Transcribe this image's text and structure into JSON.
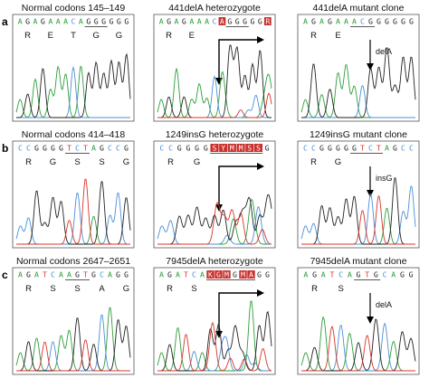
{
  "rows": [
    {
      "label": "a",
      "panels": [
        {
          "title": "Normal codons 145–149",
          "seq": "AGAGAAACAGGGGGG",
          "aa": [
            "R",
            "E",
            "T",
            "G",
            "G"
          ],
          "highlight": [],
          "underline": [
            9,
            12
          ],
          "arrow": "none",
          "annotation": ""
        },
        {
          "title": "441delA heterozygote",
          "seq": "AGAGAAACAGGGGGR",
          "aa": [
            "R",
            "E"
          ],
          "highlight": [
            8,
            14
          ],
          "underline": [
            9,
            12
          ],
          "arrow": "elbow",
          "annotation": ""
        },
        {
          "title": "441delA mutant clone",
          "seq": "AGAGAAACGGGGGG",
          "aa": [
            "R",
            "E"
          ],
          "highlight": [],
          "underline": [
            6,
            9
          ],
          "arrow": "down",
          "annotation": "delA"
        }
      ]
    },
    {
      "label": "b",
      "panels": [
        {
          "title": "Normal codons 414–418",
          "seq": "CCGGGGTCTAGCCG",
          "aa": [
            "R",
            "G",
            "S",
            "S",
            "G"
          ],
          "highlight": [],
          "underline": [
            6,
            9
          ],
          "arrow": "none",
          "annotation": ""
        },
        {
          "title": "1249insG heterozygote",
          "seq": "CCGGGGSYMMSSG",
          "aa": [
            "R",
            "G"
          ],
          "highlight": [
            6,
            7,
            8,
            9,
            10,
            11
          ],
          "underline": [
            6,
            12
          ],
          "arrow": "elbow",
          "annotation": ""
        },
        {
          "title": "1249insG mutant clone",
          "seq": "CCGGGGGTCTAGCC",
          "aa": [
            "R",
            "G"
          ],
          "highlight": [],
          "underline": [
            6,
            10
          ],
          "arrow": "down",
          "annotation": "insG"
        }
      ]
    },
    {
      "label": "c",
      "panels": [
        {
          "title": "Normal codons 2647–2651",
          "seq": "AGATCAAGTGCAGG",
          "aa": [
            "R",
            "S",
            "S",
            "A",
            "G"
          ],
          "highlight": [],
          "underline": [
            6,
            9
          ],
          "arrow": "none",
          "annotation": ""
        },
        {
          "title": "7945delA heterozygote",
          "seq": "AGATCAKGMGMAGG",
          "aa": [
            "R",
            "S"
          ],
          "highlight": [
            6,
            7,
            8,
            10,
            11
          ],
          "underline": [
            6,
            12
          ],
          "arrow": "elbow",
          "annotation": ""
        },
        {
          "title": "7945delA mutant clone",
          "seq": "AGATCAGTGCAGG",
          "aa": [
            "R",
            "S"
          ],
          "highlight": [],
          "underline": [
            6,
            9
          ],
          "arrow": "down",
          "annotation": "delA"
        }
      ]
    }
  ],
  "colors": {
    "A": "#2e9e3a",
    "C": "#4b8fd6",
    "G": "#222222",
    "T": "#d8352a",
    "ambiguous": "#d8352a",
    "frame": "#555555"
  },
  "icons": {
    "elbow_arrow": "elbow-arrow-icon",
    "down_arrow": "down-arrow-icon"
  }
}
